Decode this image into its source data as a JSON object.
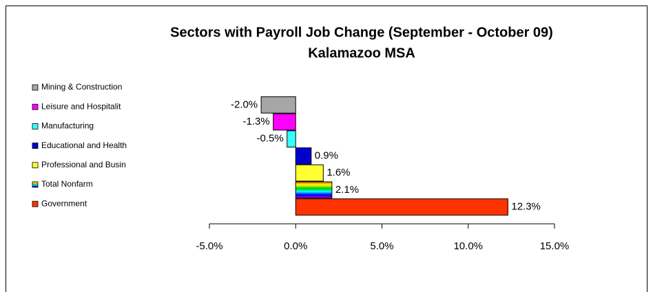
{
  "chart_data": {
    "type": "hbar",
    "title": "Sectors with Payroll Job Change (September - October 09)",
    "subtitle": "Kalamazoo MSA",
    "categories": [
      "Mining & Construction",
      "Leisure and Hospitalit",
      "Manufacturing",
      "Educational and Health",
      "Professional and Busin",
      "Total Nonfarm",
      "Government"
    ],
    "values": [
      -2.0,
      -1.3,
      -0.5,
      0.9,
      1.6,
      2.1,
      12.3
    ],
    "value_labels": [
      "-2.0%",
      "-1.3%",
      "-0.5%",
      "0.9%",
      "1.6%",
      "2.1%",
      "12.3%"
    ],
    "colors": [
      "#a6a6a6",
      "#ff00ff",
      "#33ffff",
      "#0000cc",
      "#ffff33",
      [
        "#ff6600",
        "#ffff00",
        "#00cc00",
        "#00ffff",
        "#0000ff",
        "#cc00cc"
      ],
      "#ff3300"
    ],
    "xlim": [
      -5,
      15
    ],
    "xticks": [
      {
        "value": -5,
        "label": "-5.0%"
      },
      {
        "value": 0,
        "label": "0.0%"
      },
      {
        "value": 5,
        "label": "5.0%"
      },
      {
        "value": 10,
        "label": "10.0%"
      },
      {
        "value": 15,
        "label": "15.0%"
      }
    ],
    "legend": "left"
  }
}
